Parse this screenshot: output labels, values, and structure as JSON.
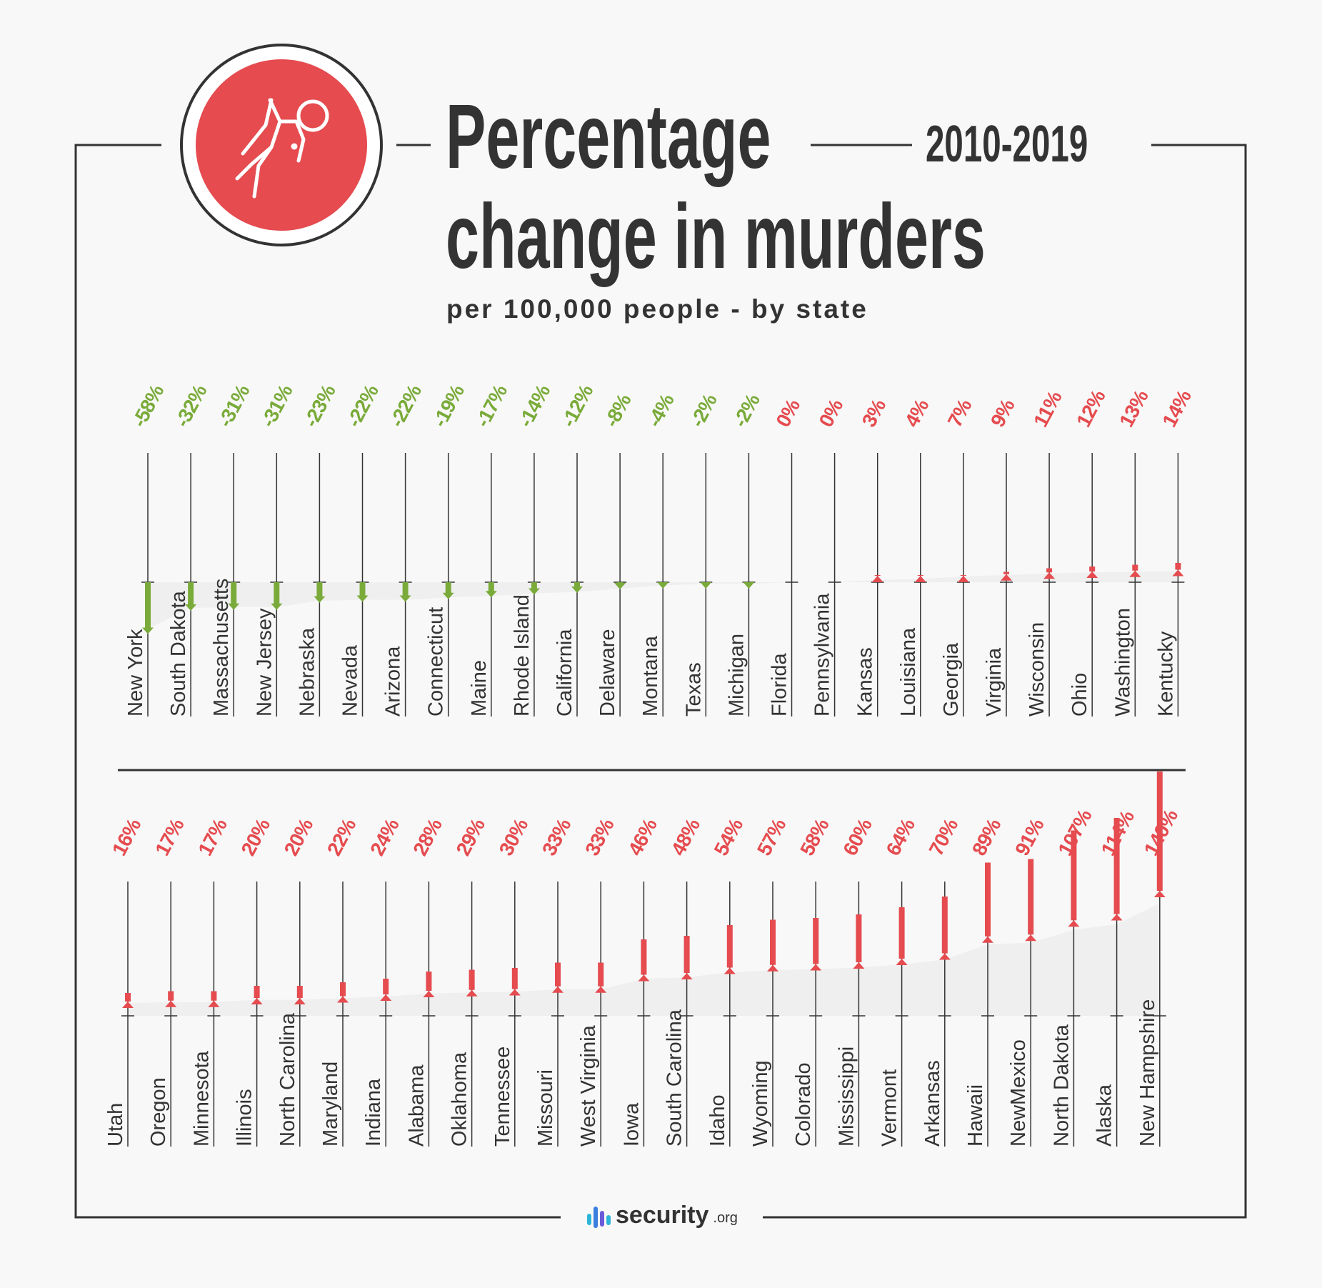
{
  "header": {
    "title_line1": "Percentage",
    "title_line2": "change in murders",
    "years": "2010-2019",
    "subtitle": "per 100,000 people - by state",
    "icon": "fallen-person-icon"
  },
  "footer": {
    "brand": "security",
    "brand_suffix": ".org",
    "icon": "bars-logo-icon"
  },
  "colors": {
    "negative": "#7aab3a",
    "positive": "#e54b4f",
    "dark": "#333333",
    "icon_bg": "#e54b4f"
  },
  "chart_data": {
    "type": "bar",
    "title": "Percentage change in murders 2010-2019",
    "subtitle": "per 100,000 people - by state",
    "unit": "%",
    "rows": [
      {
        "categories": [
          "New York",
          "South Dakota",
          "Massachusetts",
          "New Jersey",
          "Nebraska",
          "Nevada",
          "Arizona",
          "Connecticut",
          "Maine",
          "Rhode Island",
          "California",
          "Delaware",
          "Montana",
          "Texas",
          "Michigan",
          "Florida",
          "Pennsylvania",
          "Kansas",
          "Louisiana",
          "Georgia",
          "Virginia",
          "Wisconsin",
          "Ohio",
          "Washington",
          "Kentucky"
        ],
        "values": [
          -58,
          -32,
          -31,
          -31,
          -23,
          -22,
          -22,
          -19,
          -17,
          -14,
          -12,
          -8,
          -4,
          -2,
          -2,
          0,
          0,
          3,
          4,
          7,
          9,
          11,
          12,
          13,
          14
        ],
        "labels": [
          "-58%",
          "-32%",
          "-31%",
          "-31%",
          "-23%",
          "-22%",
          "-22%",
          "-19%",
          "-17%",
          "-14%",
          "-12%",
          "-8%",
          "-4%",
          "-2%",
          "-2%",
          "0%",
          "0%",
          "3%",
          "4%",
          "7%",
          "9%",
          "11%",
          "12%",
          "13%",
          "14%"
        ]
      },
      {
        "categories": [
          "Utah",
          "Oregon",
          "Minnesota",
          "Illinois",
          "North Carolina",
          "Maryland",
          "Indiana",
          "Alabama",
          "Oklahoma",
          "Tennessee",
          "Missouri",
          "West Virginia",
          "Iowa",
          "South Carolina",
          "Idaho",
          "Wyoming",
          "Colorado",
          "Mississippi",
          "Vermont",
          "Arkansas",
          "Hawaii",
          "NewMexico",
          "North Dakota",
          "Alaska",
          "New Hampshire"
        ],
        "values": [
          16,
          17,
          17,
          20,
          20,
          22,
          24,
          28,
          29,
          30,
          33,
          33,
          46,
          48,
          54,
          57,
          58,
          60,
          64,
          70,
          89,
          91,
          107,
          114,
          140
        ],
        "labels": [
          "16%",
          "17%",
          "17%",
          "20%",
          "20%",
          "22%",
          "24%",
          "28%",
          "29%",
          "30%",
          "33%",
          "33%",
          "46%",
          "48%",
          "54%",
          "57%",
          "58%",
          "60%",
          "64%",
          "70%",
          "89%",
          "91%",
          "107%",
          "114%",
          "140%"
        ]
      }
    ]
  }
}
